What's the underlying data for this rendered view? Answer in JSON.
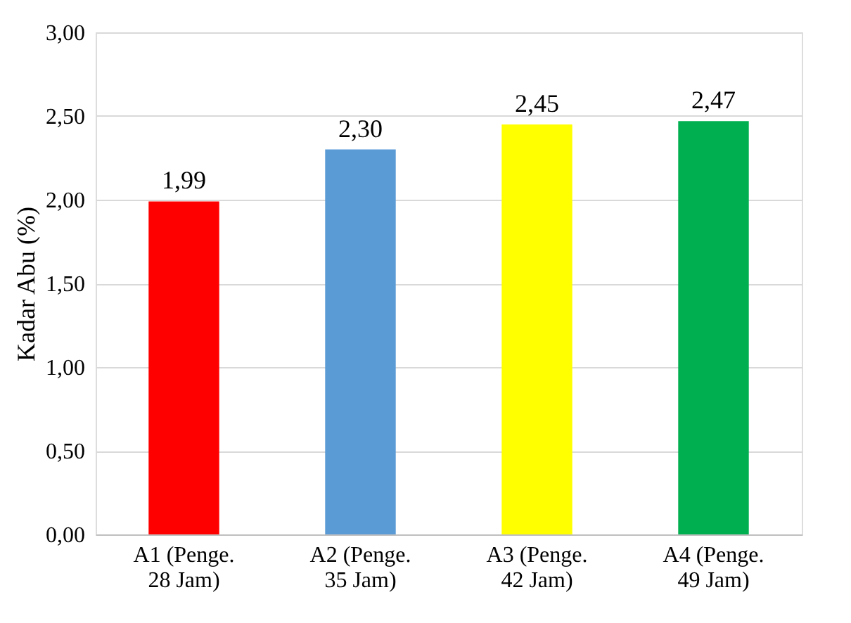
{
  "chart_data": {
    "type": "bar",
    "ylabel": "Kadar Abu (%)",
    "categories": [
      "A1 (Penge.\n28 Jam)",
      "A2 (Penge.\n35 Jam)",
      "A3 (Penge.\n42 Jam)",
      "A4 (Penge.\n49 Jam)"
    ],
    "values": [
      1.99,
      2.3,
      2.45,
      2.47
    ],
    "value_labels": [
      "1,99",
      "2,30",
      "2,45",
      "2,47"
    ],
    "colors": [
      "#ff0000",
      "#5b9bd5",
      "#ffff00",
      "#00b050"
    ],
    "ylim": [
      0,
      3
    ],
    "yticks": [
      {
        "value": 0,
        "label": "0,00"
      },
      {
        "value": 0.5,
        "label": "0,50"
      },
      {
        "value": 1,
        "label": "1,00"
      },
      {
        "value": 1.5,
        "label": "1,50"
      },
      {
        "value": 2,
        "label": "2,00"
      },
      {
        "value": 2.5,
        "label": "2,50"
      },
      {
        "value": 3,
        "label": "3,00"
      }
    ],
    "grid": "y"
  }
}
